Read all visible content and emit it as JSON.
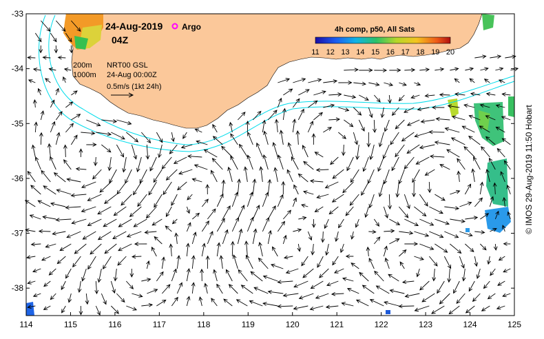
{
  "header": {
    "date": "24-Aug-2019",
    "time": "04Z",
    "argo_label": "Argo"
  },
  "colorbar": {
    "title": "4h comp, p50, All Sats",
    "ticks": [
      "11",
      "12",
      "13",
      "14",
      "15",
      "16",
      "17",
      "18",
      "19",
      "20"
    ],
    "range": [
      11,
      20
    ]
  },
  "legend": {
    "isobath_200": "200m",
    "isobath_1000": "1000m",
    "product": "NRT00 GSL",
    "analysis_time": "24-Aug 00:00Z",
    "scale_label": "0.5m/s (1kt 24h)"
  },
  "axes": {
    "x_ticks": [
      "114",
      "115",
      "116",
      "117",
      "118",
      "119",
      "120",
      "121",
      "122",
      "123",
      "124",
      "125"
    ],
    "y_ticks": [
      "-33",
      "-34",
      "-35",
      "-36",
      "-37",
      "-38"
    ],
    "lon_range": [
      114,
      125
    ],
    "lat_range": [
      -38.5,
      -33
    ]
  },
  "credit": "© IMOS 29-Aug-2019 11:50 Hobart",
  "colors": {
    "land": "#FBC89A",
    "isobath": "#00DCEB",
    "argo": "#FF00FF"
  }
}
